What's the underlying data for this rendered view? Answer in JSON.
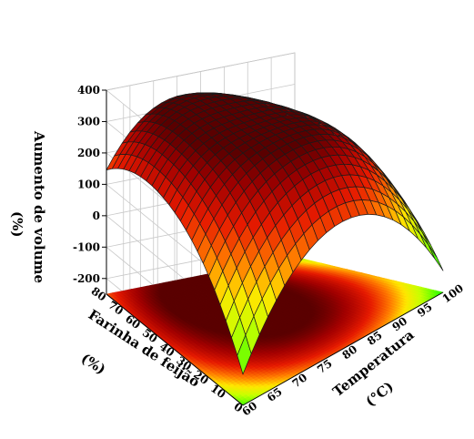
{
  "chart_data": {
    "type": "surface3d",
    "zlabel_line1": "Aumento de volume",
    "zlabel_line2": "(%)",
    "xlabel_line1": "Temperatura",
    "xlabel_line2": "(°C)",
    "ylabel_line1": "Farinha de feijão",
    "ylabel_line2": "(%)",
    "x_ticks": [
      60,
      65,
      70,
      75,
      80,
      85,
      90,
      95,
      100
    ],
    "y_ticks": [
      0,
      10,
      20,
      30,
      40,
      50,
      60,
      70,
      80
    ],
    "z_ticks": [
      -200,
      -100,
      0,
      100,
      200,
      300,
      400
    ],
    "xlim": [
      60,
      100
    ],
    "ylim": [
      0,
      80
    ],
    "zlim": [
      -250,
      400
    ],
    "model": {
      "description": "quadratic response surface z = f(Temperature, Flour)",
      "corner_values": {
        "T60_F0": -150,
        "T60_F80": 155,
        "T100_F80": -65,
        "T100_F0": -180
      },
      "max_value": 325,
      "max_at": {
        "temperature": 78,
        "flour": 40
      }
    },
    "colorscale": [
      {
        "stop": 0.0,
        "color": "#00ff00"
      },
      {
        "stop": 0.3,
        "color": "#c8ff00"
      },
      {
        "stop": 0.45,
        "color": "#ffe600"
      },
      {
        "stop": 0.6,
        "color": "#ff7800"
      },
      {
        "stop": 0.75,
        "color": "#e61a00"
      },
      {
        "stop": 0.9,
        "color": "#a00000"
      },
      {
        "stop": 1.0,
        "color": "#5a0000"
      }
    ],
    "grid": true
  }
}
